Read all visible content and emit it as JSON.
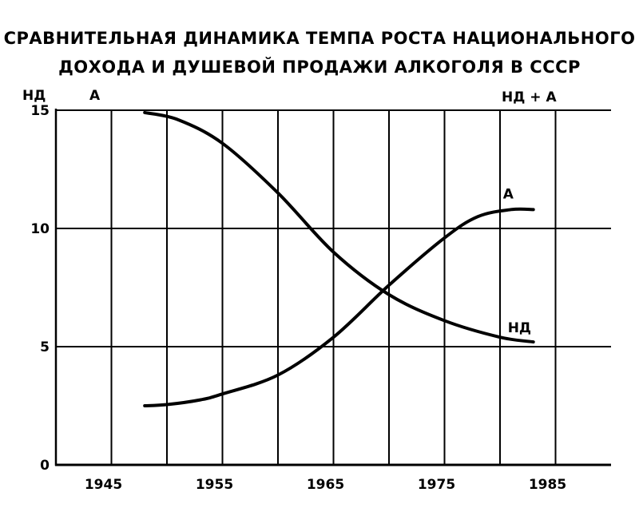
{
  "chart_data": {
    "type": "line",
    "title_lines": [
      "СРАВНИТЕЛЬНАЯ ДИНАМИКА ТЕМПА РОСТА НАЦИОНАЛЬНОГО",
      "ДОХОДА И ДУШЕВОЙ ПРОДАЖИ АЛКОГОЛЯ В СССР"
    ],
    "y_axis_label_left": "НД",
    "y_axis_label_right": "А",
    "top_right_label": "НД + А",
    "xlim": [
      1940,
      1990
    ],
    "ylim": [
      0,
      15
    ],
    "x_ticks": [
      1945,
      1955,
      1965,
      1975,
      1985
    ],
    "y_ticks": [
      0,
      5,
      10,
      15
    ],
    "grid": true,
    "series": [
      {
        "name": "НД",
        "label": "НД",
        "x": [
          1948,
          1951,
          1955,
          1960,
          1965,
          1970,
          1975,
          1980,
          1983
        ],
        "y": [
          14.9,
          14.6,
          13.6,
          11.5,
          9.0,
          7.2,
          6.1,
          5.4,
          5.2
        ]
      },
      {
        "name": "А",
        "label": "А",
        "x": [
          1948,
          1950,
          1953,
          1955,
          1960,
          1965,
          1970,
          1975,
          1978,
          1981,
          1983
        ],
        "y": [
          2.5,
          2.55,
          2.75,
          3.0,
          3.8,
          5.4,
          7.6,
          9.6,
          10.5,
          10.8,
          10.8
        ]
      }
    ]
  }
}
